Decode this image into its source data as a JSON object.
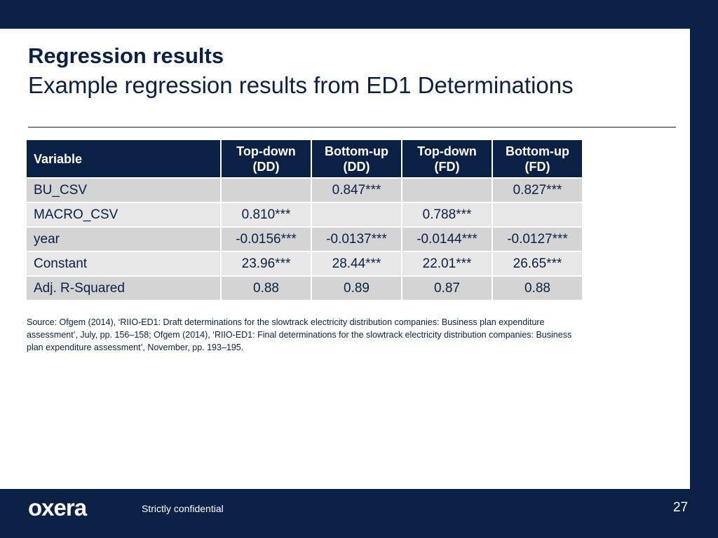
{
  "header": {
    "title": "Regression results",
    "subtitle": "Example regression results from ED1 Determinations"
  },
  "table": {
    "columns": [
      {
        "line1": "Variable",
        "line2": ""
      },
      {
        "line1": "Top-down",
        "line2": "(DD)"
      },
      {
        "line1": "Bottom-up",
        "line2": "(DD)"
      },
      {
        "line1": "Top-down",
        "line2": "(FD)"
      },
      {
        "line1": "Bottom-up",
        "line2": "(FD)"
      }
    ],
    "rows": [
      {
        "cells": [
          "BU_CSV",
          "",
          "0.847***",
          "",
          "0.827***"
        ]
      },
      {
        "cells": [
          "MACRO_CSV",
          "0.810***",
          "",
          "0.788***",
          ""
        ]
      },
      {
        "cells": [
          "year",
          "-0.0156***",
          "-0.0137***",
          "-0.0144***",
          "-0.0127***"
        ]
      },
      {
        "cells": [
          "Constant",
          "23.96***",
          "28.44***",
          "22.01***",
          "26.65***"
        ]
      },
      {
        "cells": [
          "Adj. R-Squared",
          "0.88",
          "0.89",
          "0.87",
          "0.88"
        ]
      }
    ]
  },
  "source": "Source: Ofgem (2014), ‘RIIO-ED1: Draft determinations for the slowtrack electricity distribution companies: Business plan expenditure assessment’, July, pp. 156–158; Ofgem (2014), ‘RIIO-ED1: Final determinations for the slowtrack electricity distribution companies: Business plan expenditure assessment’, November, pp. 193–195.",
  "footer": {
    "logo_text": "oxera",
    "confidential": "Strictly confidential",
    "page_number": "27"
  },
  "colors": {
    "navy": "#0a2044",
    "row_dark": "#d4d4d4",
    "row_light": "#e7e7e7"
  }
}
